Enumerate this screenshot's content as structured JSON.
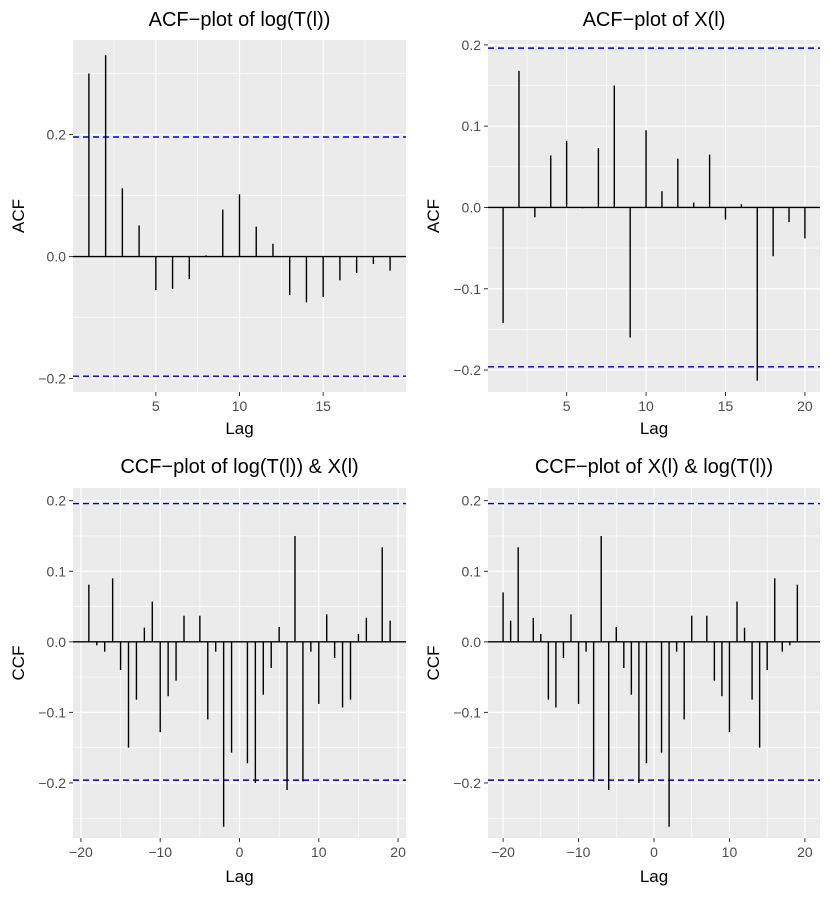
{
  "colors": {
    "panel": "#EBEBEB",
    "grid": "#FFFFFF",
    "bar": "#000000",
    "ci": "#0000CC",
    "axis_text": "#4D4D4D",
    "title_text": "#000000"
  },
  "chart_data": [
    {
      "type": "bar",
      "title": "ACF−plot of log(T(l))",
      "xlabel": "Lag",
      "ylabel": "ACF",
      "xlim": [
        0.05,
        19.95
      ],
      "ylim": [
        -0.222,
        0.355
      ],
      "xticks": [
        5,
        10,
        15
      ],
      "xtick_labels": [
        "5",
        "10",
        "15"
      ],
      "yticks": [
        -0.2,
        0.0,
        0.2
      ],
      "ytick_labels": [
        "−0.2",
        "0.0",
        "0.2"
      ],
      "ci": 0.196,
      "x": [
        1,
        2,
        3,
        4,
        5,
        6,
        7,
        8,
        9,
        10,
        11,
        12,
        13,
        14,
        15,
        16,
        17,
        18,
        19
      ],
      "values": [
        0.3,
        0.33,
        0.112,
        0.051,
        -0.055,
        -0.053,
        -0.037,
        0.002,
        0.077,
        0.102,
        0.049,
        0.021,
        -0.063,
        -0.075,
        -0.066,
        -0.039,
        -0.027,
        -0.012,
        -0.023
      ]
    },
    {
      "type": "bar",
      "title": "ACF−plot of X(l)",
      "xlabel": "Lag",
      "ylabel": "ACF",
      "xlim": [
        0.05,
        20.95
      ],
      "ylim": [
        -0.227,
        0.206
      ],
      "xticks": [
        5,
        10,
        15,
        20
      ],
      "xtick_labels": [
        "5",
        "10",
        "15",
        "20"
      ],
      "yticks": [
        -0.2,
        -0.1,
        0.0,
        0.1,
        0.2
      ],
      "ytick_labels": [
        "−0.2",
        "−0.1",
        "0.0",
        "0.1",
        "0.2"
      ],
      "ci": 0.196,
      "x": [
        1,
        2,
        3,
        4,
        5,
        6,
        7,
        8,
        9,
        10,
        11,
        12,
        13,
        14,
        15,
        16,
        17,
        18,
        19,
        20
      ],
      "values": [
        -0.142,
        0.168,
        -0.012,
        0.064,
        0.082,
        -0.001,
        0.073,
        0.15,
        -0.16,
        0.095,
        0.02,
        0.06,
        0.006,
        0.065,
        -0.015,
        0.004,
        -0.213,
        -0.06,
        -0.018,
        -0.038
      ]
    },
    {
      "type": "bar",
      "title": "CCF−plot of log(T(l)) & X(l)",
      "xlabel": "Lag",
      "ylabel": "CCF",
      "xlim": [
        -21,
        21
      ],
      "ylim": [
        -0.278,
        0.218
      ],
      "xticks": [
        -20,
        -10,
        0,
        10,
        20
      ],
      "xtick_labels": [
        "−20",
        "−10",
        "0",
        "10",
        "20"
      ],
      "yticks": [
        -0.2,
        -0.1,
        0.0,
        0.1,
        0.2
      ],
      "ytick_labels": [
        "−0.2",
        "−0.1",
        "0.0",
        "0.1",
        "0.2"
      ],
      "ci": 0.196,
      "x": [
        -19,
        -18,
        -17,
        -16,
        -15,
        -14,
        -13,
        -12,
        -11,
        -10,
        -9,
        -8,
        -7,
        -6,
        -5,
        -4,
        -3,
        -2,
        -1,
        0,
        1,
        2,
        3,
        4,
        5,
        6,
        7,
        8,
        9,
        10,
        11,
        12,
        13,
        14,
        15,
        16,
        17,
        18,
        19
      ],
      "values": [
        0.081,
        -0.005,
        -0.014,
        0.09,
        -0.04,
        -0.15,
        -0.082,
        0.02,
        0.057,
        -0.128,
        -0.077,
        -0.055,
        0.037,
        0.0,
        0.037,
        -0.11,
        -0.014,
        -0.262,
        -0.157,
        0.0,
        -0.172,
        -0.2,
        -0.075,
        -0.037,
        0.021,
        -0.21,
        0.15,
        -0.198,
        -0.014,
        -0.088,
        0.039,
        -0.023,
        -0.093,
        -0.082,
        0.011,
        0.034,
        0.0,
        0.134,
        0.03
      ]
    },
    {
      "type": "bar",
      "title": "CCF−plot of X(l) & log(T(l))",
      "xlabel": "Lag",
      "ylabel": "CCF",
      "xlim": [
        -22,
        22
      ],
      "ylim": [
        -0.278,
        0.218
      ],
      "xticks": [
        -20,
        -10,
        0,
        10,
        20
      ],
      "xtick_labels": [
        "−20",
        "−10",
        "0",
        "10",
        "20"
      ],
      "yticks": [
        -0.2,
        -0.1,
        0.0,
        0.1,
        0.2
      ],
      "ytick_labels": [
        "−0.2",
        "−0.1",
        "0.0",
        "0.1",
        "0.2"
      ],
      "ci": 0.196,
      "x": [
        -20,
        -19,
        -18,
        -17,
        -16,
        -15,
        -14,
        -13,
        -12,
        -11,
        -10,
        -9,
        -8,
        -7,
        -6,
        -5,
        -4,
        -3,
        -2,
        -1,
        0,
        1,
        2,
        3,
        4,
        5,
        6,
        7,
        8,
        9,
        10,
        11,
        12,
        13,
        14,
        15,
        16,
        17,
        18,
        19
      ],
      "values": [
        0.07,
        0.03,
        0.134,
        0.0,
        0.034,
        0.011,
        -0.082,
        -0.093,
        -0.023,
        0.039,
        -0.088,
        -0.014,
        -0.198,
        0.15,
        -0.21,
        0.021,
        -0.037,
        -0.075,
        -0.2,
        -0.172,
        0.0,
        -0.157,
        -0.262,
        -0.014,
        -0.11,
        0.037,
        0.0,
        0.037,
        -0.055,
        -0.077,
        -0.128,
        0.057,
        0.02,
        -0.082,
        -0.15,
        -0.04,
        0.09,
        -0.014,
        -0.005,
        0.081
      ]
    }
  ]
}
